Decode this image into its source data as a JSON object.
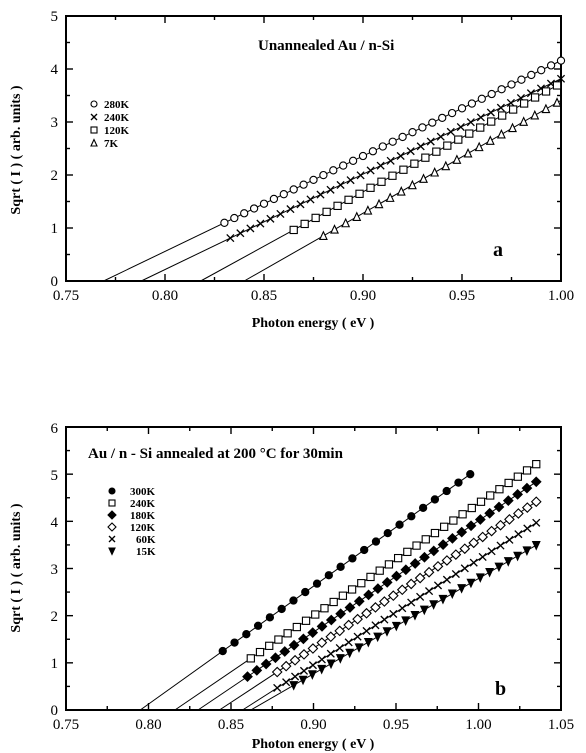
{
  "chart_data": [
    {
      "panel": "a",
      "type": "scatter",
      "title": "Unannealed Au / n-Si",
      "panel_label": "a",
      "xlabel": "Photon energy ( eV )",
      "ylabel": "Sqrt ( I )    ( arb. units )",
      "xlim": [
        0.75,
        1.0
      ],
      "ylim": [
        0,
        5
      ],
      "xticks": [
        "0.75",
        "0.80",
        "0.85",
        "0.90",
        "0.95",
        "1.00"
      ],
      "yticks": [
        "0",
        "1",
        "2",
        "3",
        "4",
        "5"
      ],
      "legend_position": "left",
      "series": [
        {
          "name": "280K",
          "marker": "open-circle",
          "x_start": 0.83,
          "x_end": 1.0,
          "n": 35,
          "fit": {
            "x0": 0.769,
            "x1": 1.0,
            "slope": 18.0
          }
        },
        {
          "name": "240K",
          "marker": "cross",
          "x_start": 0.833,
          "x_end": 1.0,
          "n": 34,
          "fit": {
            "x0": 0.788,
            "x1": 1.0,
            "slope": 18.0
          }
        },
        {
          "name": "120K",
          "marker": "open-square",
          "x_start": 0.865,
          "x_end": 0.998,
          "n": 25,
          "fit": {
            "x0": 0.818,
            "x1": 1.0,
            "slope": 20.5
          }
        },
        {
          "name": "7K",
          "marker": "open-triangle",
          "x_start": 0.88,
          "x_end": 0.998,
          "n": 22,
          "fit": {
            "x0": 0.84,
            "x1": 1.0,
            "slope": 21.3
          }
        }
      ]
    },
    {
      "panel": "b",
      "type": "scatter",
      "title": "Au / n - Si  annealed at 200 °C for 30min",
      "panel_label": "b",
      "xlabel": "Photon energy ( eV )",
      "ylabel": "Sqrt ( I )    ( arb. units )",
      "xlim": [
        0.75,
        1.05
      ],
      "ylim": [
        0,
        6
      ],
      "xticks": [
        "0.75",
        "0.80",
        "0.85",
        "0.90",
        "0.95",
        "1.00",
        "1.05"
      ],
      "yticks": [
        "0",
        "1",
        "2",
        "3",
        "4",
        "5",
        "6"
      ],
      "legend_position": "top-left",
      "series": [
        {
          "name": "300K",
          "marker": "filled-circle",
          "x_start": 0.845,
          "x_end": 0.995,
          "n": 22,
          "fit": {
            "x0": 0.795,
            "x1": 0.995,
            "slope": 25.0
          }
        },
        {
          "name": "240K",
          "marker": "open-square",
          "x_start": 0.862,
          "x_end": 1.035,
          "n": 32,
          "fit": {
            "x0": 0.816,
            "x1": 1.035,
            "slope": 23.8
          }
        },
        {
          "name": "180K",
          "marker": "filled-diamond",
          "x_start": 0.86,
          "x_end": 1.035,
          "n": 32,
          "fit": {
            "x0": 0.83,
            "x1": 1.035,
            "slope": 23.6
          }
        },
        {
          "name": "120K",
          "marker": "open-diamond",
          "x_start": 0.878,
          "x_end": 1.035,
          "n": 30,
          "fit": {
            "x0": 0.843,
            "x1": 1.035,
            "slope": 23.0
          }
        },
        {
          "name": "60K",
          "marker": "cross",
          "x_start": 0.878,
          "x_end": 1.035,
          "n": 30,
          "fit": {
            "x0": 0.857,
            "x1": 1.035,
            "slope": 22.3
          }
        },
        {
          "name": "15K",
          "marker": "filled-triangle-down",
          "x_start": 0.888,
          "x_end": 1.035,
          "n": 27,
          "fit": {
            "x0": 0.862,
            "x1": 1.035,
            "slope": 20.2
          }
        }
      ]
    }
  ]
}
